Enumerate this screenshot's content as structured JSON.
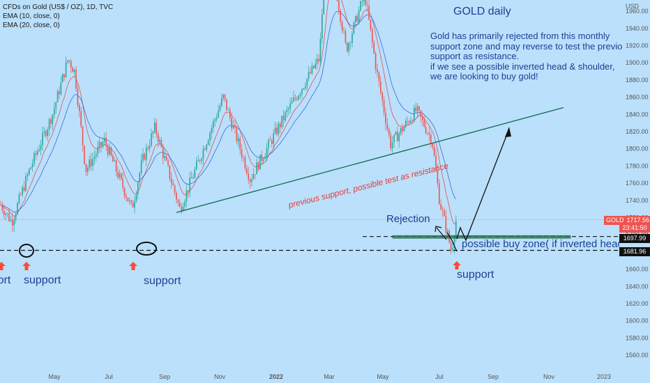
{
  "header": {
    "symbol": "CFDs on Gold (US$ / OZ), 1D, TVC",
    "ema1": "EMA (10, close, 0)",
    "ema2": "EMA (20, close, 0)",
    "currency": "USD"
  },
  "annotations": {
    "title": "GOLD daily",
    "body": [
      "Gold has primarily rejected from this monthly",
      "support zone and may reverse to test the previous",
      "support as resistance.",
      "if we see a possible inverted head & shoulder,",
      "we are looking to buy gold!"
    ],
    "support_labels": [
      "support",
      "support",
      "support",
      "support"
    ],
    "rejection": "Rejection",
    "buy_zone": "possible buy zone( if inverted head & shoulder)",
    "trendline_text": "previous support, possible test as resistance"
  },
  "price_labels": {
    "symbol_tag": "GOLD",
    "last_price": "1717.56",
    "countdown": "23:41:50",
    "zone_price": "1697.99",
    "support_price": "1681.96"
  },
  "colors": {
    "background": "#bbe0fb",
    "up_candle": "#26a69a",
    "down_candle": "#ef5350",
    "ema_fast": "#e53935",
    "ema_slow": "#1e58d6",
    "trendline": "#0d6b4d",
    "annotation_text": "#1c3f94",
    "arrow": "#ff4b33"
  },
  "chart_data": {
    "type": "candlestick",
    "title": "GOLD daily",
    "y_axis_ticks": [
      1560,
      1580,
      1600,
      1620,
      1640,
      1660,
      1680,
      1700,
      1720,
      1740,
      1760,
      1780,
      1800,
      1820,
      1840,
      1860,
      1880,
      1900,
      1920,
      1940,
      1960
    ],
    "x_axis_labels": [
      "May",
      "Jul",
      "Sep",
      "Nov",
      "2022",
      "Mar",
      "May",
      "Jul",
      "Sep",
      "Nov",
      "2023"
    ],
    "ylim": [
      1545,
      1985
    ],
    "price_path": [
      {
        "date": "2021-03-20",
        "close": 1735
      },
      {
        "date": "2021-04-01",
        "close": 1715
      },
      {
        "date": "2021-04-20",
        "close": 1775
      },
      {
        "date": "2021-05-15",
        "close": 1840
      },
      {
        "date": "2021-06-01",
        "close": 1905
      },
      {
        "date": "2021-06-08",
        "close": 1890
      },
      {
        "date": "2021-06-20",
        "close": 1775
      },
      {
        "date": "2021-07-10",
        "close": 1810
      },
      {
        "date": "2021-08-09",
        "close": 1730
      },
      {
        "date": "2021-08-20",
        "close": 1785
      },
      {
        "date": "2021-09-03",
        "close": 1825
      },
      {
        "date": "2021-09-30",
        "close": 1730
      },
      {
        "date": "2021-10-20",
        "close": 1785
      },
      {
        "date": "2021-11-16",
        "close": 1860
      },
      {
        "date": "2021-12-15",
        "close": 1765
      },
      {
        "date": "2022-01-25",
        "close": 1845
      },
      {
        "date": "2022-02-28",
        "close": 1905
      },
      {
        "date": "2022-03-08",
        "close": 2050
      },
      {
        "date": "2022-03-29",
        "close": 1915
      },
      {
        "date": "2022-04-18",
        "close": 1980
      },
      {
        "date": "2022-05-01",
        "close": 1890
      },
      {
        "date": "2022-05-16",
        "close": 1805
      },
      {
        "date": "2022-06-13",
        "close": 1845
      },
      {
        "date": "2022-06-30",
        "close": 1810
      },
      {
        "date": "2022-07-08",
        "close": 1740
      },
      {
        "date": "2022-07-21",
        "close": 1681
      },
      {
        "date": "2022-07-26",
        "close": 1717.56
      }
    ],
    "ema_10": [
      1730,
      1740,
      1860,
      1780,
      1800,
      1740,
      1815,
      1770,
      1850,
      1780,
      1880,
      1940,
      1900,
      1810,
      1840,
      1740,
      1700,
      1712
    ],
    "ema_20": [
      1740,
      1745,
      1840,
      1790,
      1795,
      1755,
      1805,
      1775,
      1835,
      1790,
      1860,
      1925,
      1910,
      1825,
      1838,
      1770,
      1738,
      1740
    ],
    "levels": {
      "support": 1681.96,
      "buy_zone": 1697.99,
      "last": 1717.56
    },
    "trendline": [
      {
        "date": "2021-09-20",
        "price": 1726
      },
      {
        "date": "2022-10-30",
        "price": 1848
      }
    ]
  }
}
